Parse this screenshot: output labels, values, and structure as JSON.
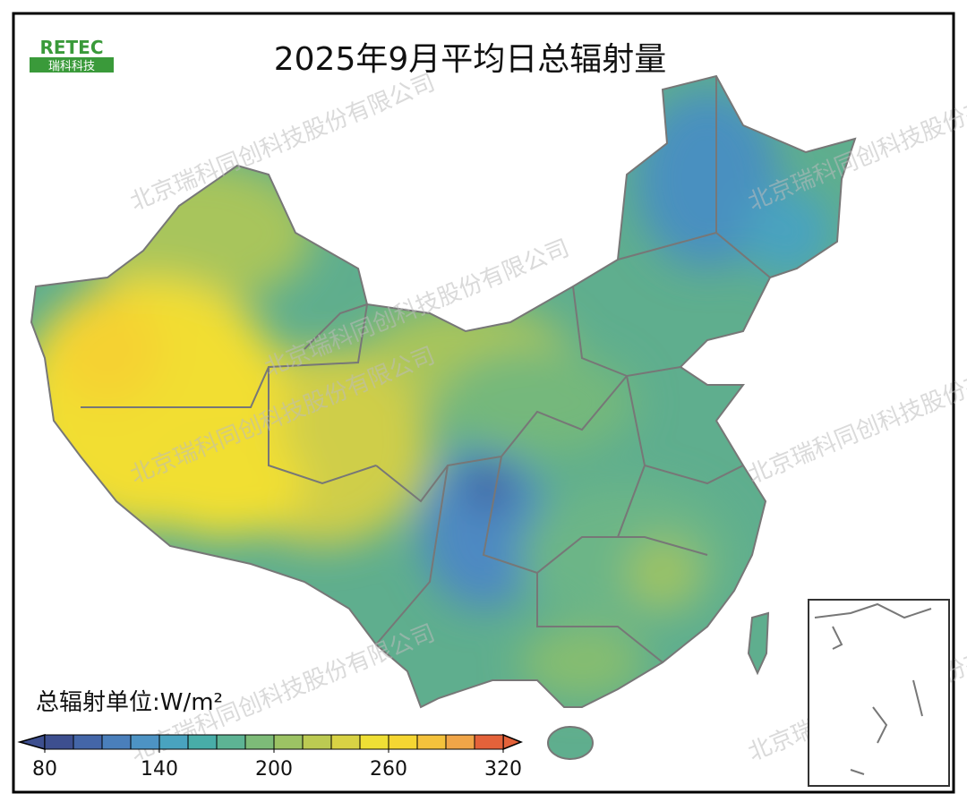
{
  "title": "2025年9月平均日总辐射量",
  "logo": {
    "text": "RETEC",
    "subtext": "瑞科科技"
  },
  "watermarks": [
    "北京瑞科同创科技股份有限公司",
    "北京瑞科同创科技股份有限公司",
    "北京瑞科同创科技股份有限公司",
    "北京瑞科同创科技股份有限公司",
    "北京瑞科同创科技股份有限公司",
    "北京瑞科同创科技股份有限公司",
    "北京瑞科同创科技股份有限公司"
  ],
  "legend": {
    "label": "总辐射单位:W/m²",
    "range": [
      80,
      320
    ],
    "ticks": [
      80,
      140,
      200,
      260,
      320
    ],
    "colors": [
      "#3d4f8f",
      "#4466a8",
      "#4a7fbb",
      "#4d93c4",
      "#49a3bf",
      "#48ada8",
      "#5db394",
      "#7dbb78",
      "#9cc364",
      "#bcca52",
      "#d8d244",
      "#efdf35",
      "#f5d632",
      "#f4c23c",
      "#f0a548",
      "#e4623a"
    ]
  }
}
